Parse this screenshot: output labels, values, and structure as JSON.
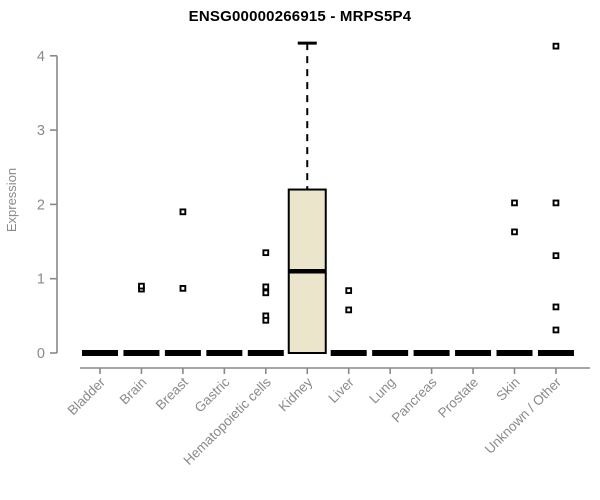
{
  "chart_data": {
    "type": "boxplot",
    "title": "ENSG00000266915 - MRPS5P4",
    "xlabel": "",
    "ylabel": "Expression",
    "ylim": [
      0,
      4.2
    ],
    "yticks": [
      0,
      1,
      2,
      3,
      4
    ],
    "grid": false,
    "legend": false,
    "colors": {
      "box_fill": "#EAE5CB",
      "box_border": "#000000",
      "median": "#000000",
      "outlier": "#000000",
      "axis": "#888888",
      "tick_text": "#8a8a8a",
      "title_text": "#000000"
    },
    "categories": [
      "Bladder",
      "Brain",
      "Breast",
      "Gastric",
      "Hematopoietic cells",
      "Kidney",
      "Liver",
      "Lung",
      "Pancreas",
      "Prostate",
      "Skin",
      "Unknown / Other"
    ],
    "boxes": [
      {
        "category": "Bladder",
        "lo": 0,
        "q1": 0,
        "median": 0,
        "q3": 0,
        "hi": 0,
        "outliers": []
      },
      {
        "category": "Brain",
        "lo": 0,
        "q1": 0,
        "median": 0,
        "q3": 0,
        "hi": 0,
        "outliers": [
          0.86,
          0.9
        ]
      },
      {
        "category": "Breast",
        "lo": 0,
        "q1": 0,
        "median": 0,
        "q3": 0,
        "hi": 0,
        "outliers": [
          1.9,
          0.87
        ]
      },
      {
        "category": "Gastric",
        "lo": 0,
        "q1": 0,
        "median": 0,
        "q3": 0,
        "hi": 0,
        "outliers": []
      },
      {
        "category": "Hematopoietic cells",
        "lo": 0,
        "q1": 0,
        "median": 0,
        "q3": 0,
        "hi": 0,
        "outliers": [
          1.35,
          0.89,
          0.81,
          0.5,
          0.44
        ]
      },
      {
        "category": "Kidney",
        "lo": 0,
        "q1": 0,
        "median": 1.1,
        "q3": 2.2,
        "hi": 4.17,
        "outliers": []
      },
      {
        "category": "Liver",
        "lo": 0,
        "q1": 0,
        "median": 0,
        "q3": 0,
        "hi": 0,
        "outliers": [
          0.84,
          0.58
        ]
      },
      {
        "category": "Lung",
        "lo": 0,
        "q1": 0,
        "median": 0,
        "q3": 0,
        "hi": 0,
        "outliers": []
      },
      {
        "category": "Pancreas",
        "lo": 0,
        "q1": 0,
        "median": 0,
        "q3": 0,
        "hi": 0,
        "outliers": []
      },
      {
        "category": "Prostate",
        "lo": 0,
        "q1": 0,
        "median": 0,
        "q3": 0,
        "hi": 0,
        "outliers": []
      },
      {
        "category": "Skin",
        "lo": 0,
        "q1": 0,
        "median": 0,
        "q3": 0,
        "hi": 0,
        "outliers": [
          2.02,
          1.63
        ]
      },
      {
        "category": "Unknown / Other",
        "lo": 0,
        "q1": 0,
        "median": 0,
        "q3": 0,
        "hi": 0,
        "outliers": [
          4.13,
          2.02,
          1.31,
          0.62,
          0.31
        ]
      }
    ]
  }
}
